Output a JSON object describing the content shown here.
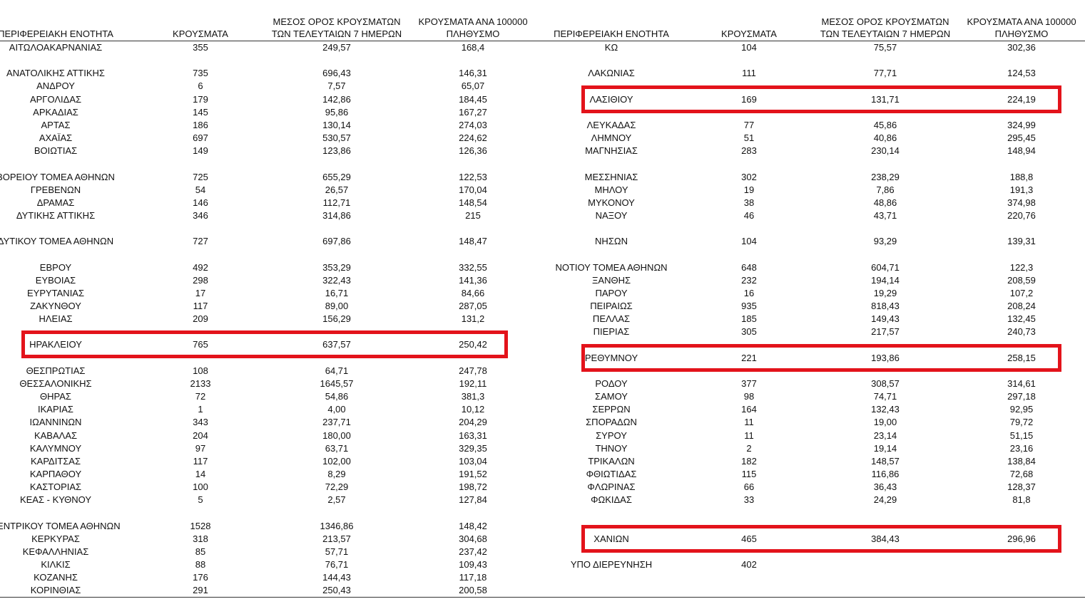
{
  "tables": [
    {
      "columns": [
        "ΠΕΡΙΦΕΡΕΙΑΚΗ ΕΝΟΤΗΤΑ",
        "ΚΡΟΥΣΜΑΤΑ",
        "ΜΕΣΟΣ ΟΡΟΣ ΚΡΟΥΣΜΑΤΩΝ ΤΩΝ ΤΕΛΕΥΤΑΙΩΝ 7 ΗΜΕΡΩΝ",
        "ΚΡΟΥΣΜΑΤΑ ΑΝΑ 100000 ΠΛΗΘΥΣΜΟ"
      ],
      "rows": [
        [
          "ΑΙΤΩΛΟΑΚΑΡΝΑΝΙΑΣ",
          "355",
          "249,57",
          "168,4"
        ],
        [
          "ΑΝΑΤΟΛΙΚΗΣ ΑΤΤΙΚΗΣ",
          "735",
          "696,43",
          "146,31"
        ],
        [
          "ΑΝΔΡΟΥ",
          "6",
          "7,57",
          "65,07"
        ],
        [
          "ΑΡΓΟΛΙΔΑΣ",
          "179",
          "142,86",
          "184,45"
        ],
        [
          "ΑΡΚΑΔΙΑΣ",
          "145",
          "95,86",
          "167,27"
        ],
        [
          "ΑΡΤΑΣ",
          "186",
          "130,14",
          "274,03"
        ],
        [
          "ΑΧΑΪΑΣ",
          "697",
          "530,57",
          "224,62"
        ],
        [
          "ΒΟΙΩΤΙΑΣ",
          "149",
          "123,86",
          "126,36"
        ],
        [
          "ΒΟΡΕΙΟΥ ΤΟΜΕΑ ΑΘΗΝΩΝ",
          "725",
          "655,29",
          "122,53"
        ],
        [
          "ΓΡΕΒΕΝΩΝ",
          "54",
          "26,57",
          "170,04"
        ],
        [
          "ΔΡΑΜΑΣ",
          "146",
          "112,71",
          "148,54"
        ],
        [
          "ΔΥΤΙΚΗΣ ΑΤΤΙΚΗΣ",
          "346",
          "314,86",
          "215"
        ],
        [
          "ΔΥΤΙΚΟΥ ΤΟΜΕΑ ΑΘΗΝΩΝ",
          "727",
          "697,86",
          "148,47"
        ],
        [
          "ΕΒΡΟΥ",
          "492",
          "353,29",
          "332,55"
        ],
        [
          "ΕΥΒΟΙΑΣ",
          "298",
          "322,43",
          "141,36"
        ],
        [
          "ΕΥΡΥΤΑΝΙΑΣ",
          "17",
          "16,71",
          "84,66"
        ],
        [
          "ΖΑΚΥΝΘΟΥ",
          "117",
          "89,00",
          "287,05"
        ],
        [
          "ΗΛΕΙΑΣ",
          "209",
          "156,29",
          "131,2"
        ],
        [
          "ΗΡΑΚΛΕΙΟΥ",
          "765",
          "637,57",
          "250,42"
        ],
        [
          "ΘΕΣΠΡΩΤΙΑΣ",
          "108",
          "64,71",
          "247,78"
        ],
        [
          "ΘΕΣΣΑΛΟΝΙΚΗΣ",
          "2133",
          "1645,57",
          "192,11"
        ],
        [
          "ΘΗΡΑΣ",
          "72",
          "54,86",
          "381,3"
        ],
        [
          "ΙΚΑΡΙΑΣ",
          "1",
          "4,00",
          "10,12"
        ],
        [
          "ΙΩΑΝΝΙΝΩΝ",
          "343",
          "237,71",
          "204,29"
        ],
        [
          "ΚΑΒΑΛΑΣ",
          "204",
          "180,00",
          "163,31"
        ],
        [
          "ΚΑΛΥΜΝΟΥ",
          "97",
          "63,71",
          "329,35"
        ],
        [
          "ΚΑΡΔΙΤΣΑΣ",
          "117",
          "102,00",
          "103,04"
        ],
        [
          "ΚΑΡΠΑΘΟΥ",
          "14",
          "8,29",
          "191,52"
        ],
        [
          "ΚΑΣΤΟΡΙΑΣ",
          "100",
          "72,29",
          "198,72"
        ],
        [
          "ΚΕΑΣ - ΚΥΘΝΟΥ",
          "5",
          "2,57",
          "127,84"
        ],
        [
          "ΚΕΝΤΡΙΚΟΥ ΤΟΜΕΑ ΑΘΗΝΩΝ",
          "1528",
          "1346,86",
          "148,42"
        ],
        [
          "ΚΕΡΚΥΡΑΣ",
          "318",
          "213,57",
          "304,68"
        ],
        [
          "ΚΕΦΑΛΛΗΝΙΑΣ",
          "85",
          "57,71",
          "237,42"
        ],
        [
          "ΚΙΛΚΙΣ",
          "88",
          "76,71",
          "109,43"
        ],
        [
          "ΚΟΖΑΝΗΣ",
          "176",
          "144,43",
          "117,18"
        ],
        [
          "ΚΟΡΙΝΘΙΑΣ",
          "291",
          "250,43",
          "200,58"
        ]
      ],
      "highlighted_rows": [
        18
      ]
    },
    {
      "columns": [
        "ΠΕΡΙΦΕΡΕΙΑΚΗ ΕΝΟΤΗΤΑ",
        "ΚΡΟΥΣΜΑΤΑ",
        "ΜΕΣΟΣ ΟΡΟΣ ΚΡΟΥΣΜΑΤΩΝ ΤΩΝ ΤΕΛΕΥΤΑΙΩΝ 7 ΗΜΕΡΩΝ",
        "ΚΡΟΥΣΜΑΤΑ ΑΝΑ 100000 ΠΛΗΘΥΣΜΟ"
      ],
      "rows": [
        [
          "ΚΩ",
          "104",
          "75,57",
          "302,36"
        ],
        [
          "ΛΑΚΩΝΙΑΣ",
          "111",
          "77,71",
          "124,53"
        ],
        [
          "ΛΑΣΙΘΙΟΥ",
          "169",
          "131,71",
          "224,19"
        ],
        [
          "ΛΕΥΚΑΔΑΣ",
          "77",
          "45,86",
          "324,99"
        ],
        [
          "ΛΗΜΝΟΥ",
          "51",
          "40,86",
          "295,45"
        ],
        [
          "ΜΑΓΝΗΣΙΑΣ",
          "283",
          "230,14",
          "148,94"
        ],
        [
          "ΜΕΣΣΗΝΙΑΣ",
          "302",
          "238,29",
          "188,8"
        ],
        [
          "ΜΗΛΟΥ",
          "19",
          "7,86",
          "191,3"
        ],
        [
          "ΜΥΚΟΝΟΥ",
          "38",
          "48,86",
          "374,98"
        ],
        [
          "ΝΑΞΟΥ",
          "46",
          "43,71",
          "220,76"
        ],
        [
          "ΝΗΣΩΝ",
          "104",
          "93,29",
          "139,31"
        ],
        [
          "ΝΟΤΙΟΥ ΤΟΜΕΑ ΑΘΗΝΩΝ",
          "648",
          "604,71",
          "122,3"
        ],
        [
          "ΞΑΝΘΗΣ",
          "232",
          "194,14",
          "208,59"
        ],
        [
          "ΠΑΡΟΥ",
          "16",
          "19,29",
          "107,2"
        ],
        [
          "ΠΕΙΡΑΙΩΣ",
          "935",
          "818,43",
          "208,24"
        ],
        [
          "ΠΕΛΛΑΣ",
          "185",
          "149,43",
          "132,45"
        ],
        [
          "ΠΙΕΡΙΑΣ",
          "305",
          "217,57",
          "240,73"
        ],
        [
          "ΡΕΘΥΜΝΟΥ",
          "221",
          "193,86",
          "258,15"
        ],
        [
          "ΡΟΔΟΥ",
          "377",
          "308,57",
          "314,61"
        ],
        [
          "ΣΑΜΟΥ",
          "98",
          "74,71",
          "297,18"
        ],
        [
          "ΣΕΡΡΩΝ",
          "164",
          "132,43",
          "92,95"
        ],
        [
          "ΣΠΟΡΑΔΩΝ",
          "11",
          "19,00",
          "79,72"
        ],
        [
          "ΣΥΡΟΥ",
          "11",
          "23,14",
          "51,15"
        ],
        [
          "ΤΗΝΟΥ",
          "2",
          "19,14",
          "23,16"
        ],
        [
          "ΤΡΙΚΑΛΩΝ",
          "182",
          "148,57",
          "138,84"
        ],
        [
          "ΦΘΙΩΤΙΔΑΣ",
          "115",
          "116,86",
          "72,68"
        ],
        [
          "ΦΛΩΡΙΝΑΣ",
          "66",
          "36,43",
          "128,37"
        ],
        [
          "ΦΩΚΙΔΑΣ",
          "33",
          "24,29",
          "81,8"
        ],
        [
          "ΧΑΝΙΩΝ",
          "465",
          "384,43",
          "296,96"
        ],
        [
          "ΥΠΟ ΔΙΕΡΕΥΝΗΣΗ",
          "402"
        ]
      ],
      "highlighted_rows": [
        2,
        17,
        28
      ]
    }
  ]
}
